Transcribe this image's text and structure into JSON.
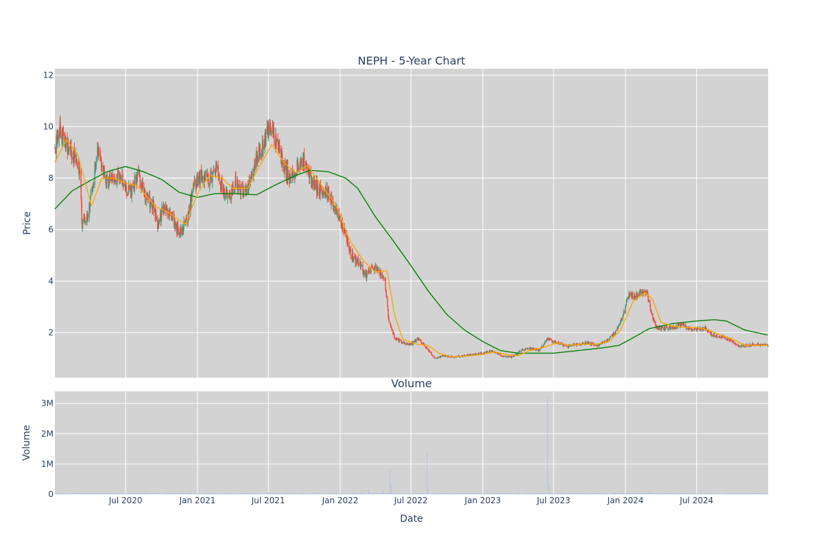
{
  "chart_data": [
    {
      "type": "candlestick",
      "title": "NEPH - 5-Year Chart",
      "ylabel": "Price",
      "xlabel": "",
      "ylim": [
        0.25,
        12.25
      ],
      "yticks": [
        2,
        4,
        6,
        8,
        10,
        12
      ],
      "xlim": [
        "2020-01-02",
        "2024-12-31"
      ],
      "xticks": [
        "2020-07-01",
        "2021-01-01",
        "2021-07-01",
        "2022-01-01",
        "2022-07-01",
        "2023-01-01",
        "2023-07-01",
        "2024-01-01",
        "2024-07-01"
      ],
      "xtick_labels": [
        "Jul 2020",
        "Jan 2021",
        "Jul 2021",
        "Jan 2022",
        "Jul 2022",
        "Jan 2023",
        "Jul 2023",
        "Jan 2024",
        "Jul 2024"
      ],
      "grid": true,
      "colors": {
        "up": "#3d9970",
        "down": "#ff4136",
        "ma_short": "#ffa500",
        "ma_long": "#008000",
        "plot_bg": "#d3d3d3",
        "grid": "#ffffff"
      },
      "price_path": [
        [
          "2020-01-02",
          9.2
        ],
        [
          "2020-01-15",
          10.0
        ],
        [
          "2020-02-01",
          9.3
        ],
        [
          "2020-02-20",
          8.9
        ],
        [
          "2020-03-05",
          8.3
        ],
        [
          "2020-03-12",
          6.2
        ],
        [
          "2020-03-25",
          6.4
        ],
        [
          "2020-04-10",
          7.9
        ],
        [
          "2020-04-22",
          9.1
        ],
        [
          "2020-05-08",
          8.0
        ],
        [
          "2020-05-25",
          7.8
        ],
        [
          "2020-06-15",
          8.1
        ],
        [
          "2020-06-30",
          7.6
        ],
        [
          "2020-07-15",
          7.5
        ],
        [
          "2020-08-01",
          8.2
        ],
        [
          "2020-08-20",
          7.3
        ],
        [
          "2020-09-10",
          6.9
        ],
        [
          "2020-09-22",
          6.1
        ],
        [
          "2020-10-05",
          6.9
        ],
        [
          "2020-10-25",
          6.5
        ],
        [
          "2020-11-15",
          5.9
        ],
        [
          "2020-12-05",
          6.3
        ],
        [
          "2020-12-22",
          7.7
        ],
        [
          "2021-01-10",
          8.1
        ],
        [
          "2021-01-30",
          7.9
        ],
        [
          "2021-02-18",
          8.4
        ],
        [
          "2021-03-08",
          7.5
        ],
        [
          "2021-03-25",
          7.3
        ],
        [
          "2021-04-10",
          7.9
        ],
        [
          "2021-04-28",
          7.4
        ],
        [
          "2021-05-15",
          7.8
        ],
        [
          "2021-06-01",
          8.8
        ],
        [
          "2021-06-20",
          9.2
        ],
        [
          "2021-07-03",
          10.1
        ],
        [
          "2021-07-20",
          9.5
        ],
        [
          "2021-08-05",
          8.7
        ],
        [
          "2021-08-25",
          8.0
        ],
        [
          "2021-09-12",
          8.4
        ],
        [
          "2021-10-01",
          8.7
        ],
        [
          "2021-10-20",
          7.8
        ],
        [
          "2021-11-10",
          7.6
        ],
        [
          "2021-12-01",
          7.4
        ],
        [
          "2021-12-20",
          6.8
        ],
        [
          "2022-01-10",
          6.0
        ],
        [
          "2022-01-30",
          5.0
        ],
        [
          "2022-02-18",
          4.7
        ],
        [
          "2022-03-08",
          4.2
        ],
        [
          "2022-03-25",
          4.6
        ],
        [
          "2022-04-10",
          4.4
        ],
        [
          "2022-04-25",
          4.1
        ],
        [
          "2022-05-05",
          2.5
        ],
        [
          "2022-05-20",
          1.8
        ],
        [
          "2022-06-10",
          1.6
        ],
        [
          "2022-07-01",
          1.55
        ],
        [
          "2022-07-20",
          1.75
        ],
        [
          "2022-08-10",
          1.4
        ],
        [
          "2022-09-01",
          1.0
        ],
        [
          "2022-09-25",
          1.1
        ],
        [
          "2022-10-20",
          1.05
        ],
        [
          "2022-11-15",
          1.1
        ],
        [
          "2022-12-10",
          1.15
        ],
        [
          "2023-01-01",
          1.2
        ],
        [
          "2023-01-25",
          1.3
        ],
        [
          "2023-02-20",
          1.1
        ],
        [
          "2023-03-15",
          1.05
        ],
        [
          "2023-04-10",
          1.3
        ],
        [
          "2023-05-01",
          1.4
        ],
        [
          "2023-05-25",
          1.3
        ],
        [
          "2023-06-15",
          1.75
        ],
        [
          "2023-07-10",
          1.6
        ],
        [
          "2023-08-05",
          1.45
        ],
        [
          "2023-09-01",
          1.55
        ],
        [
          "2023-09-25",
          1.6
        ],
        [
          "2023-10-20",
          1.5
        ],
        [
          "2023-11-15",
          1.7
        ],
        [
          "2023-12-10",
          2.1
        ],
        [
          "2023-12-28",
          2.8
        ],
        [
          "2024-01-10",
          3.5
        ],
        [
          "2024-01-25",
          3.4
        ],
        [
          "2024-02-10",
          3.6
        ],
        [
          "2024-02-25",
          3.5
        ],
        [
          "2024-03-08",
          2.7
        ],
        [
          "2024-03-20",
          2.2
        ],
        [
          "2024-04-10",
          2.15
        ],
        [
          "2024-05-01",
          2.2
        ],
        [
          "2024-05-25",
          2.3
        ],
        [
          "2024-06-15",
          2.1
        ],
        [
          "2024-07-01",
          2.1
        ],
        [
          "2024-07-20",
          2.2
        ],
        [
          "2024-08-10",
          1.9
        ],
        [
          "2024-09-01",
          1.85
        ],
        [
          "2024-09-25",
          1.7
        ],
        [
          "2024-10-15",
          1.45
        ],
        [
          "2024-11-05",
          1.5
        ],
        [
          "2024-11-25",
          1.55
        ],
        [
          "2024-12-31",
          1.5
        ]
      ],
      "ma_short": [
        [
          "2020-01-02",
          8.6
        ],
        [
          "2020-02-01",
          9.5
        ],
        [
          "2020-03-01",
          8.9
        ],
        [
          "2020-04-05",
          6.9
        ],
        [
          "2020-05-01",
          8.0
        ],
        [
          "2020-06-01",
          8.0
        ],
        [
          "2020-07-01",
          7.8
        ],
        [
          "2020-08-01",
          7.7
        ],
        [
          "2020-09-15",
          6.9
        ],
        [
          "2020-10-15",
          6.7
        ],
        [
          "2020-12-01",
          6.2
        ],
        [
          "2021-01-01",
          7.4
        ],
        [
          "2021-02-01",
          8.1
        ],
        [
          "2021-03-05",
          8.0
        ],
        [
          "2021-04-01",
          7.6
        ],
        [
          "2021-05-10",
          7.6
        ],
        [
          "2021-06-10",
          8.5
        ],
        [
          "2021-07-10",
          9.3
        ],
        [
          "2021-08-10",
          8.6
        ],
        [
          "2021-09-10",
          8.2
        ],
        [
          "2021-10-10",
          8.5
        ],
        [
          "2021-11-10",
          7.8
        ],
        [
          "2021-12-20",
          7.0
        ],
        [
          "2022-01-25",
          5.6
        ],
        [
          "2022-03-01",
          4.8
        ],
        [
          "2022-04-01",
          4.35
        ],
        [
          "2022-05-01",
          4.4
        ],
        [
          "2022-05-20",
          2.7
        ],
        [
          "2022-06-10",
          1.75
        ],
        [
          "2022-07-15",
          1.55
        ],
        [
          "2022-08-15",
          1.5
        ],
        [
          "2022-09-10",
          1.2
        ],
        [
          "2022-10-15",
          1.05
        ],
        [
          "2022-12-01",
          1.1
        ],
        [
          "2023-01-01",
          1.15
        ],
        [
          "2023-02-01",
          1.25
        ],
        [
          "2023-03-01",
          1.15
        ],
        [
          "2023-04-01",
          1.1
        ],
        [
          "2023-05-01",
          1.3
        ],
        [
          "2023-06-01",
          1.4
        ],
        [
          "2023-07-10",
          1.6
        ],
        [
          "2023-08-10",
          1.5
        ],
        [
          "2023-09-10",
          1.55
        ],
        [
          "2023-10-20",
          1.55
        ],
        [
          "2023-11-20",
          1.65
        ],
        [
          "2023-12-20",
          2.1
        ],
        [
          "2024-01-20",
          3.2
        ],
        [
          "2024-02-20",
          3.55
        ],
        [
          "2024-03-10",
          3.3
        ],
        [
          "2024-04-01",
          2.4
        ],
        [
          "2024-05-01",
          2.25
        ],
        [
          "2024-06-01",
          2.2
        ],
        [
          "2024-07-01",
          2.2
        ],
        [
          "2024-08-01",
          2.1
        ],
        [
          "2024-09-01",
          1.9
        ],
        [
          "2024-10-01",
          1.75
        ],
        [
          "2024-11-01",
          1.5
        ],
        [
          "2024-12-31",
          1.5
        ]
      ],
      "ma_long": [
        [
          "2020-01-02",
          6.8
        ],
        [
          "2020-02-15",
          7.5
        ],
        [
          "2020-04-01",
          7.9
        ],
        [
          "2020-05-15",
          8.25
        ],
        [
          "2020-07-01",
          8.45
        ],
        [
          "2020-08-15",
          8.25
        ],
        [
          "2020-10-01",
          7.95
        ],
        [
          "2020-11-15",
          7.45
        ],
        [
          "2021-01-01",
          7.25
        ],
        [
          "2021-02-15",
          7.4
        ],
        [
          "2021-04-01",
          7.4
        ],
        [
          "2021-06-01",
          7.35
        ],
        [
          "2021-07-15",
          7.7
        ],
        [
          "2021-09-01",
          8.05
        ],
        [
          "2021-10-15",
          8.3
        ],
        [
          "2021-12-01",
          8.25
        ],
        [
          "2022-01-15",
          8.0
        ],
        [
          "2022-02-15",
          7.6
        ],
        [
          "2022-04-01",
          6.5
        ],
        [
          "2022-05-15",
          5.6
        ],
        [
          "2022-07-01",
          4.6
        ],
        [
          "2022-08-15",
          3.6
        ],
        [
          "2022-10-01",
          2.7
        ],
        [
          "2022-11-15",
          2.1
        ],
        [
          "2023-01-01",
          1.65
        ],
        [
          "2023-02-15",
          1.3
        ],
        [
          "2023-04-01",
          1.2
        ],
        [
          "2023-07-01",
          1.2
        ],
        [
          "2023-09-01",
          1.3
        ],
        [
          "2023-11-01",
          1.4
        ],
        [
          "2023-12-15",
          1.5
        ],
        [
          "2024-01-15",
          1.75
        ],
        [
          "2024-03-01",
          2.15
        ],
        [
          "2024-05-01",
          2.35
        ],
        [
          "2024-07-01",
          2.45
        ],
        [
          "2024-08-15",
          2.5
        ],
        [
          "2024-09-15",
          2.45
        ],
        [
          "2024-11-01",
          2.1
        ],
        [
          "2024-12-31",
          1.9
        ]
      ]
    },
    {
      "type": "bar",
      "title": "Volume",
      "ylabel": "Volume",
      "xlabel": "Date",
      "ylim": [
        0,
        3400000
      ],
      "yticks": [
        0,
        1000000,
        2000000,
        3000000
      ],
      "ytick_labels": [
        "0",
        "1M",
        "2M",
        "3M"
      ],
      "grid": true,
      "bar_color": "#b0c4de",
      "baseline": 30000,
      "spikes": [
        [
          "2020-06-20",
          60000
        ],
        [
          "2021-06-30",
          80000
        ],
        [
          "2022-03-15",
          180000
        ],
        [
          "2022-04-20",
          120000
        ],
        [
          "2022-05-09",
          850000
        ],
        [
          "2022-05-12",
          300000
        ],
        [
          "2022-08-11",
          1350000
        ],
        [
          "2022-08-15",
          200000
        ],
        [
          "2023-01-20",
          60000
        ],
        [
          "2023-06-16",
          3250000
        ],
        [
          "2023-06-20",
          300000
        ],
        [
          "2024-01-05",
          100000
        ],
        [
          "2024-03-01",
          80000
        ]
      ]
    }
  ]
}
